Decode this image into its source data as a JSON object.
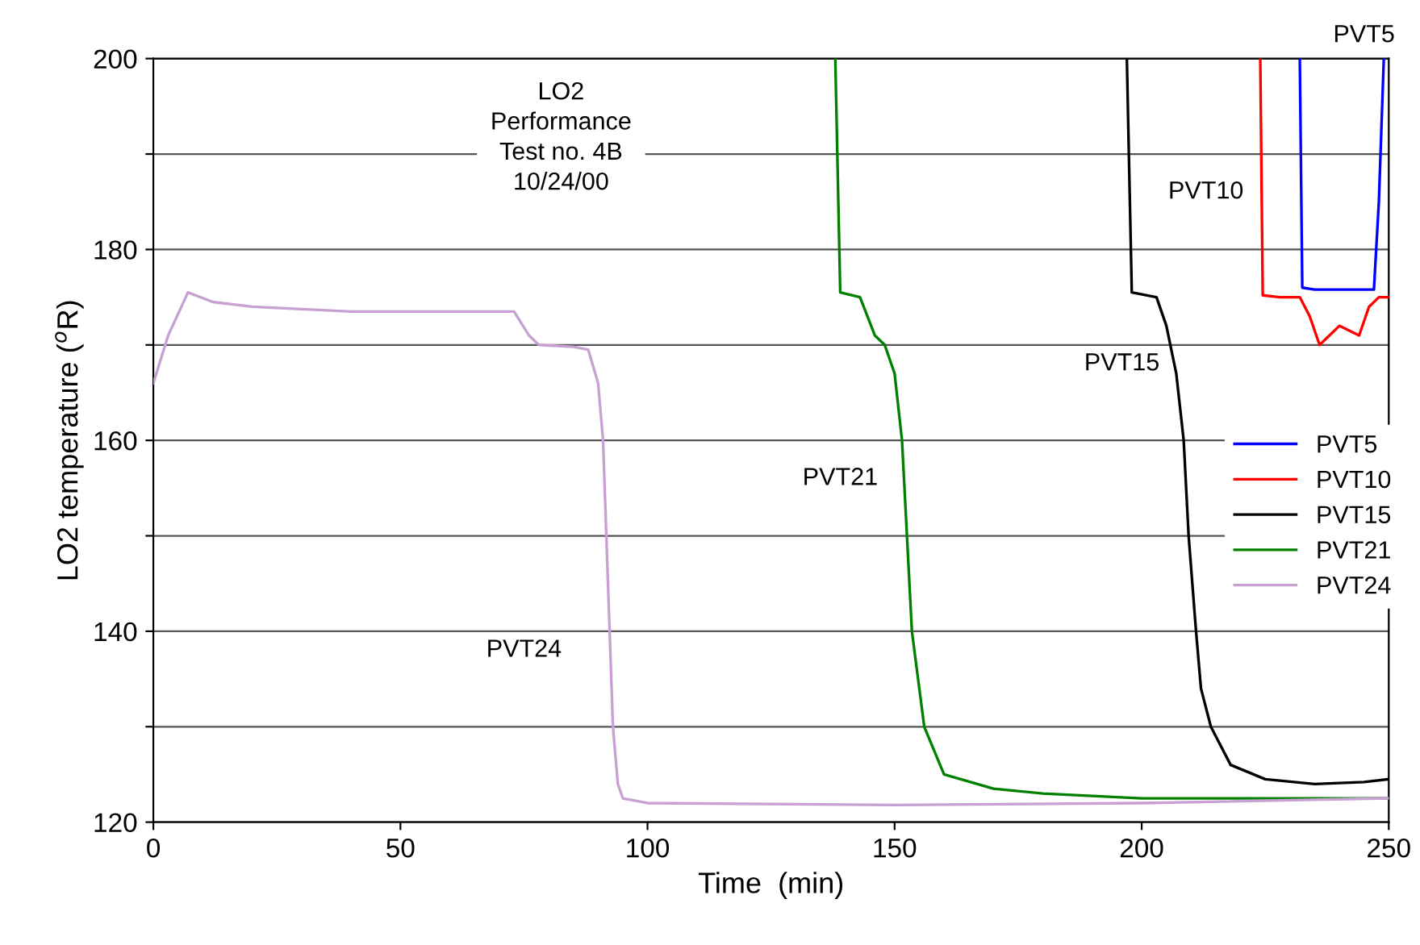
{
  "chart_data": {
    "type": "line",
    "xlabel": "Time  (min)",
    "ylabel": "LO2 temperature ($^{o}$R)",
    "xlim": [
      0,
      250
    ],
    "xticks": [
      0,
      50,
      100,
      150,
      200,
      250
    ],
    "ylim": [
      120,
      200
    ],
    "yticks": [
      120,
      {
        "value": 130,
        "label": null
      },
      140,
      {
        "value": 150,
        "label": null
      },
      160,
      {
        "value": 170,
        "label": null
      },
      180,
      {
        "value": 190,
        "label": null
      },
      200
    ],
    "grid": "y",
    "legend": "right",
    "line_style": "solid",
    "marker": "none",
    "annotations": [
      "LO2\nPerformance\nTest no. 4B\n10/24/00",
      "PVT24",
      "PVT21",
      "PVT15",
      "PVT10",
      "PVT5"
    ],
    "series": [
      {
        "name": "PVT5",
        "color": "#0000ff",
        "x": [
          232,
          232.5,
          235,
          240,
          247,
          248,
          249
        ],
        "values": [
          200,
          176,
          175.8,
          175.8,
          175.8,
          185,
          200
        ]
      },
      {
        "name": "PVT10",
        "color": "#ff0000",
        "x": [
          224,
          224.5,
          228,
          232,
          234,
          236,
          238,
          240,
          242,
          244,
          246,
          248,
          250
        ],
        "values": [
          200,
          175.2,
          175,
          175,
          173,
          170,
          171,
          172,
          171.5,
          171,
          174,
          175,
          175
        ]
      },
      {
        "name": "PVT15",
        "color": "#000000",
        "x": [
          197,
          198,
          203,
          205,
          207,
          208.5,
          209.5,
          211,
          212,
          214,
          218,
          225,
          235,
          245,
          250
        ],
        "values": [
          200,
          175.5,
          175,
          172,
          167,
          160,
          150,
          140,
          134,
          130,
          126,
          124.5,
          124,
          124.2,
          124.5
        ]
      },
      {
        "name": "PVT21",
        "color": "#008000",
        "x": [
          138,
          139,
          143,
          146,
          148,
          150,
          151.5,
          152.5,
          153.5,
          156,
          160,
          170,
          180,
          200,
          250
        ],
        "values": [
          200,
          175.5,
          175,
          171,
          170,
          167,
          160,
          150,
          140,
          130,
          125,
          123.5,
          123,
          122.5,
          122.5
        ]
      },
      {
        "name": "PVT24",
        "color": "#c8a0d2",
        "x": [
          0,
          3,
          7,
          12,
          20,
          40,
          60,
          73,
          76,
          78,
          85,
          88,
          90,
          91,
          92,
          93,
          94,
          95,
          100,
          150,
          200,
          250
        ],
        "values": [
          166,
          171,
          175.5,
          174.5,
          174,
          173.5,
          173.5,
          173.5,
          171,
          170,
          169.8,
          169.5,
          166,
          160,
          145,
          130,
          124,
          122.5,
          122,
          121.8,
          122,
          122.5
        ]
      }
    ]
  }
}
